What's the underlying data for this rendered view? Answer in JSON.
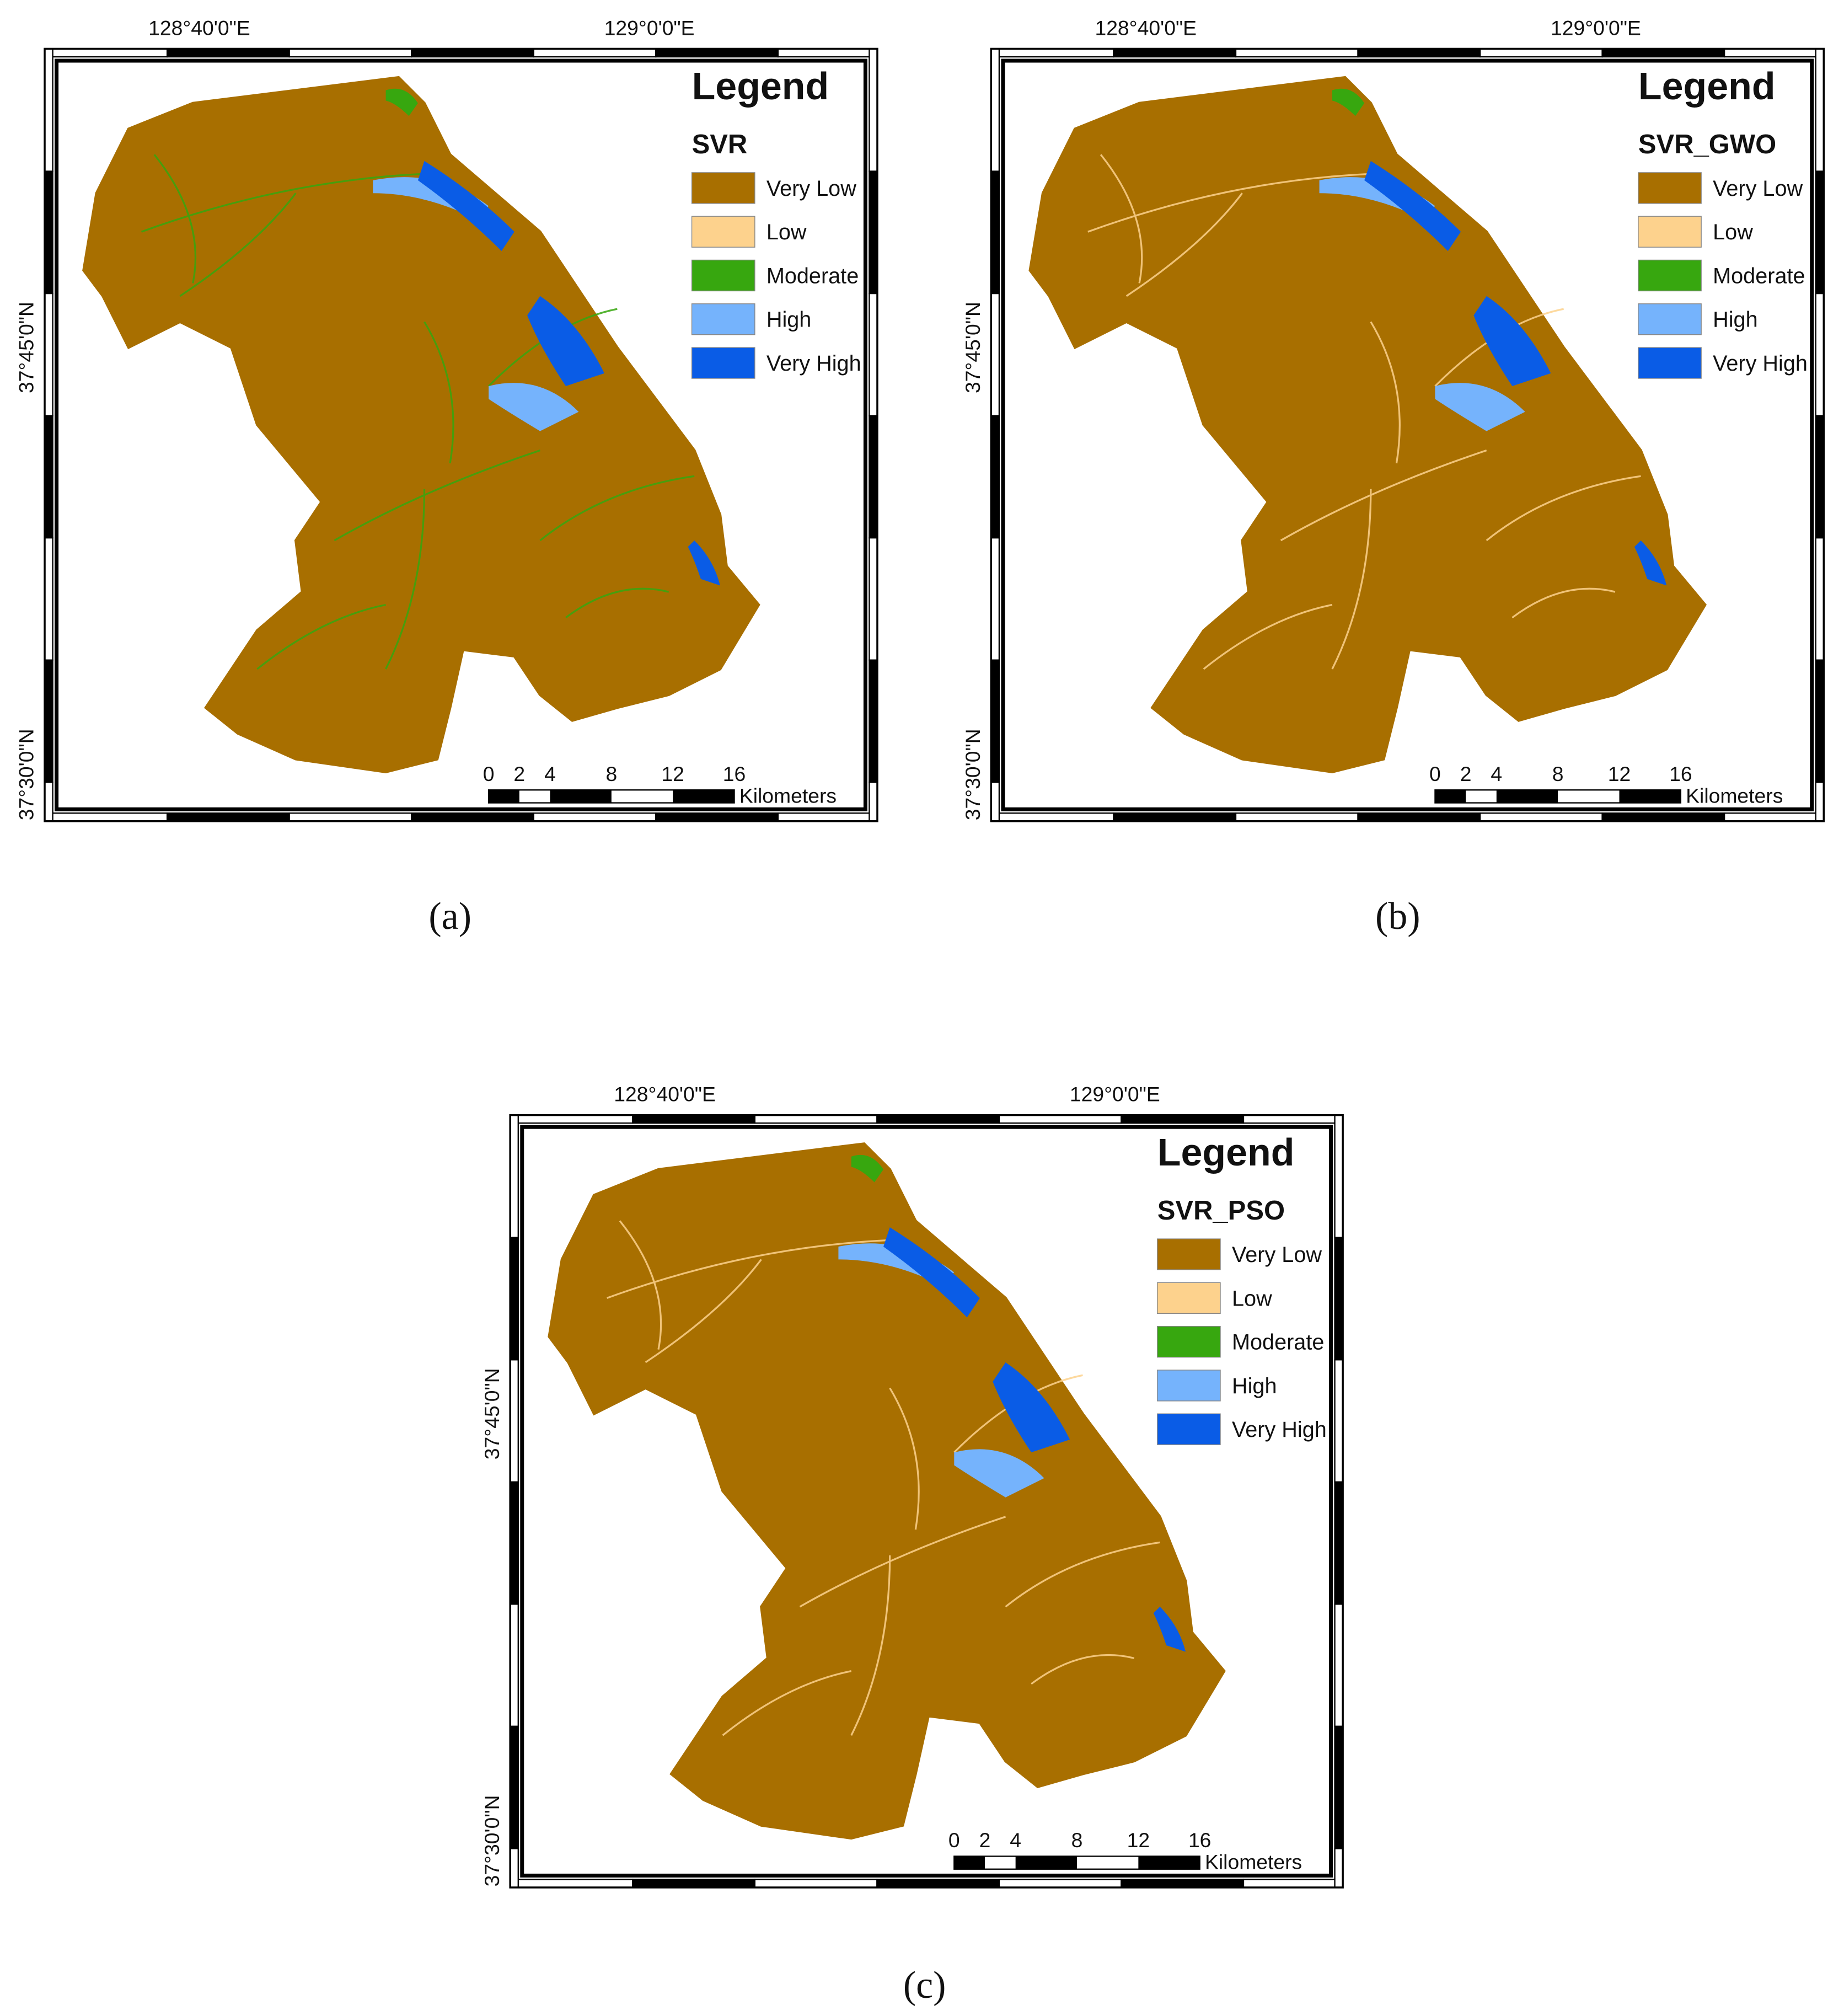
{
  "panels": [
    {
      "label": "(a)",
      "lon_labels": [
        "128°40'0\"E",
        "129°0'0\"E"
      ],
      "lat_labels": [
        "37°45'0\"N",
        "37°30'0\"N"
      ],
      "legend": {
        "title": "Legend",
        "subtitle": "SVR",
        "classes": [
          "Very Low",
          "Low",
          "Moderate",
          "High",
          "Very High"
        ],
        "colors": [
          "#a86f00",
          "#fdd28d",
          "#37a70f",
          "#75b3fc",
          "#0a5ce6"
        ]
      },
      "scale": {
        "ticks": [
          0,
          2,
          4,
          8,
          12,
          16
        ],
        "unit": "Kilometers"
      }
    },
    {
      "label": "(b)",
      "lon_labels": [
        "128°40'0\"E",
        "129°0'0\"E"
      ],
      "lat_labels": [
        "37°45'0\"N",
        "37°30'0\"N"
      ],
      "legend": {
        "title": "Legend",
        "subtitle": "SVR_GWO",
        "classes": [
          "Very Low",
          "Low",
          "Moderate",
          "High",
          "Very High"
        ],
        "colors": [
          "#a86f00",
          "#fdd28d",
          "#37a70f",
          "#75b3fc",
          "#0a5ce6"
        ]
      },
      "scale": {
        "ticks": [
          0,
          2,
          4,
          8,
          12,
          16
        ],
        "unit": "Kilometers"
      }
    },
    {
      "label": "(c)",
      "lon_labels": [
        "128°40'0\"E",
        "129°0'0\"E"
      ],
      "lat_labels": [
        "37°45'0\"N",
        "37°30'0\"N"
      ],
      "legend": {
        "title": "Legend",
        "subtitle": "SVR_PSO",
        "classes": [
          "Very Low",
          "Low",
          "Moderate",
          "High",
          "Very High"
        ],
        "colors": [
          "#a86f00",
          "#fdd28d",
          "#37a70f",
          "#75b3fc",
          "#0a5ce6"
        ]
      },
      "scale": {
        "ticks": [
          0,
          2,
          4,
          8,
          12,
          16
        ],
        "unit": "Kilometers"
      }
    }
  ]
}
